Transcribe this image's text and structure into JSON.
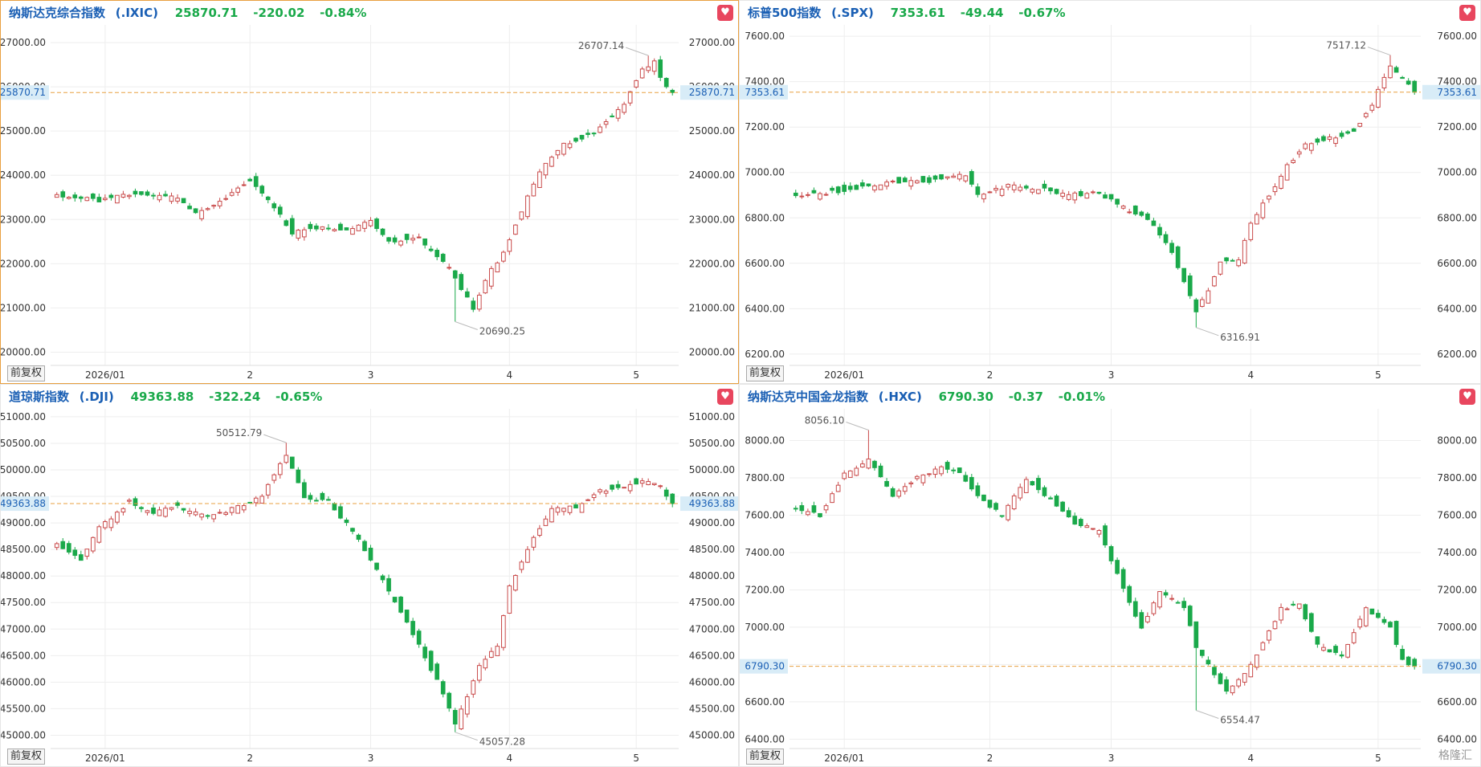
{
  "theme": {
    "up": "#c94a4a",
    "down": "#1aa94a",
    "ref": "#e8a040",
    "grid": "#eeeeee",
    "accent": "#1a5fb4"
  },
  "adj_label": "前复权",
  "fav_icon": "heart-icon",
  "logo_text": "格隆汇",
  "chart_data": [
    {
      "type": "candlestick",
      "name": "纳斯达克综合指数",
      "code": "(.IXIC)",
      "price": "25870.71",
      "change": "-220.02",
      "pct": "-0.84%",
      "last": 25870.71,
      "last_label": "25870.71",
      "ylim": [
        19700,
        27400
      ],
      "ticks": [
        "20000.00",
        "21000.00",
        "22000.00",
        "23000.00",
        "24000.00",
        "25000.00",
        "26000.00",
        "27000.00"
      ],
      "tick_values": [
        20000,
        21000,
        22000,
        23000,
        24000,
        25000,
        26000,
        27000
      ],
      "x_labels": [
        "2026/01",
        "2",
        "3",
        "4",
        "5"
      ],
      "x_label_idx": [
        8,
        32,
        52,
        75,
        96
      ],
      "n": 103,
      "max": {
        "i": 98,
        "v": 26707.14,
        "label": "26707.14"
      },
      "min": {
        "i": 66,
        "v": 20690.25,
        "label": "20690.25"
      },
      "anchors": [
        [
          0,
          23560
        ],
        [
          7,
          23430
        ],
        [
          13,
          23600
        ],
        [
          20,
          23500
        ],
        [
          23,
          23120
        ],
        [
          28,
          23480
        ],
        [
          32,
          23900
        ],
        [
          36,
          23300
        ],
        [
          39,
          22700
        ],
        [
          44,
          22850
        ],
        [
          48,
          22750
        ],
        [
          52,
          23000
        ],
        [
          55,
          22500
        ],
        [
          60,
          22600
        ],
        [
          65,
          21900
        ],
        [
          69,
          21000
        ],
        [
          72,
          21900
        ],
        [
          73,
          22000
        ],
        [
          74,
          22250
        ],
        [
          76,
          22900
        ],
        [
          80,
          24100
        ],
        [
          84,
          24700
        ],
        [
          89,
          24950
        ],
        [
          94,
          25600
        ],
        [
          97,
          26400
        ],
        [
          99,
          26550
        ],
        [
          100,
          26200
        ],
        [
          102,
          25870.71
        ]
      ]
    },
    {
      "type": "candlestick",
      "name": "标普500指数",
      "code": "(.SPX)",
      "price": "7353.61",
      "change": "-49.44",
      "pct": "-0.67%",
      "last": 7353.61,
      "last_label": "7353.61",
      "ylim": [
        6150,
        7650
      ],
      "ticks": [
        "6200.00",
        "6400.00",
        "6600.00",
        "6800.00",
        "7000.00",
        "7200.00",
        "7400.00",
        "7600.00"
      ],
      "tick_values": [
        6200,
        6400,
        6600,
        6800,
        7000,
        7200,
        7400,
        7600
      ],
      "x_labels": [
        "2026/01",
        "2",
        "3",
        "4",
        "5"
      ],
      "x_label_idx": [
        8,
        32,
        52,
        75,
        96
      ],
      "n": 103,
      "max": {
        "i": 98,
        "v": 7517.12,
        "label": "7517.12"
      },
      "min": {
        "i": 66,
        "v": 6316.91,
        "label": "6316.91"
      },
      "anchors": [
        [
          0,
          6900
        ],
        [
          5,
          6910
        ],
        [
          10,
          6930
        ],
        [
          16,
          6960
        ],
        [
          22,
          6960
        ],
        [
          28,
          6990
        ],
        [
          30,
          6900
        ],
        [
          35,
          6940
        ],
        [
          40,
          6930
        ],
        [
          45,
          6900
        ],
        [
          50,
          6910
        ],
        [
          55,
          6830
        ],
        [
          58,
          6800
        ],
        [
          62,
          6650
        ],
        [
          66,
          6390
        ],
        [
          68,
          6480
        ],
        [
          70,
          6600
        ],
        [
          73,
          6610
        ],
        [
          75,
          6780
        ],
        [
          78,
          6900
        ],
        [
          81,
          7030
        ],
        [
          84,
          7120
        ],
        [
          88,
          7150
        ],
        [
          92,
          7180
        ],
        [
          95,
          7300
        ],
        [
          97,
          7420
        ],
        [
          98,
          7470
        ],
        [
          100,
          7410
        ],
        [
          102,
          7353.61
        ]
      ]
    },
    {
      "type": "candlestick",
      "name": "道琼斯指数",
      "code": "(.DJI)",
      "price": "49363.88",
      "change": "-322.24",
      "pct": "-0.65%",
      "last": 49363.88,
      "last_label": "49363.88",
      "ylim": [
        44750,
        51150
      ],
      "ticks": [
        "45000.00",
        "45500.00",
        "46000.00",
        "46500.00",
        "47000.00",
        "47500.00",
        "48000.00",
        "48500.00",
        "49000.00",
        "49500.00",
        "50000.00",
        "50500.00",
        "51000.00"
      ],
      "tick_values": [
        45000,
        45500,
        46000,
        46500,
        47000,
        47500,
        48000,
        48500,
        49000,
        49500,
        50000,
        50500,
        51000
      ],
      "x_labels": [
        "2026/01",
        "2",
        "3",
        "4",
        "5"
      ],
      "x_label_idx": [
        8,
        32,
        52,
        75,
        96
      ],
      "n": 103,
      "max": {
        "i": 38,
        "v": 50512.79,
        "label": "50512.79"
      },
      "min": {
        "i": 66,
        "v": 45057.28,
        "label": "45057.28"
      },
      "anchors": [
        [
          0,
          48600
        ],
        [
          4,
          48300
        ],
        [
          7,
          48900
        ],
        [
          12,
          49400
        ],
        [
          16,
          49200
        ],
        [
          20,
          49300
        ],
        [
          25,
          49100
        ],
        [
          30,
          49300
        ],
        [
          34,
          49500
        ],
        [
          38,
          50300
        ],
        [
          41,
          49500
        ],
        [
          45,
          49400
        ],
        [
          50,
          48700
        ],
        [
          55,
          47700
        ],
        [
          60,
          46700
        ],
        [
          64,
          45800
        ],
        [
          66,
          45200
        ],
        [
          70,
          46300
        ],
        [
          73,
          46700
        ],
        [
          75,
          47800
        ],
        [
          78,
          48500
        ],
        [
          82,
          49300
        ],
        [
          86,
          49300
        ],
        [
          90,
          49600
        ],
        [
          94,
          49700
        ],
        [
          98,
          49800
        ],
        [
          100,
          49700
        ],
        [
          102,
          49363.88
        ]
      ]
    },
    {
      "type": "candlestick",
      "name": "纳斯达克中国金龙指数",
      "code": "(.HXC)",
      "price": "6790.30",
      "change": "-0.37",
      "pct": "-0.01%",
      "last": 6790.3,
      "last_label": "6790.30",
      "ylim": [
        6350,
        8170
      ],
      "ticks": [
        "6400.00",
        "6600.00",
        "6800.00",
        "7000.00",
        "7200.00",
        "7400.00",
        "7600.00",
        "7800.00",
        "8000.00"
      ],
      "tick_values": [
        6400,
        6600,
        6800,
        7000,
        7200,
        7400,
        7600,
        7800,
        8000
      ],
      "x_labels": [
        "2026/01",
        "2",
        "3",
        "4",
        "5"
      ],
      "x_label_idx": [
        8,
        32,
        52,
        75,
        96
      ],
      "n": 103,
      "max": {
        "i": 12,
        "v": 8056.1,
        "label": "8056.10"
      },
      "min": {
        "i": 66,
        "v": 6554.47,
        "label": "6554.47"
      },
      "anchors": [
        [
          0,
          7640
        ],
        [
          4,
          7600
        ],
        [
          8,
          7820
        ],
        [
          12,
          7900
        ],
        [
          16,
          7700
        ],
        [
          20,
          7800
        ],
        [
          24,
          7860
        ],
        [
          27,
          7820
        ],
        [
          30,
          7700
        ],
        [
          34,
          7600
        ],
        [
          38,
          7800
        ],
        [
          42,
          7680
        ],
        [
          46,
          7560
        ],
        [
          50,
          7520
        ],
        [
          54,
          7200
        ],
        [
          57,
          7000
        ],
        [
          60,
          7200
        ],
        [
          64,
          7100
        ],
        [
          66,
          6900
        ],
        [
          68,
          6800
        ],
        [
          71,
          6650
        ],
        [
          74,
          6750
        ],
        [
          76,
          6850
        ],
        [
          80,
          7100
        ],
        [
          83,
          7120
        ],
        [
          86,
          6900
        ],
        [
          90,
          6850
        ],
        [
          94,
          7100
        ],
        [
          98,
          7000
        ],
        [
          100,
          6820
        ],
        [
          102,
          6790.3
        ]
      ]
    }
  ]
}
